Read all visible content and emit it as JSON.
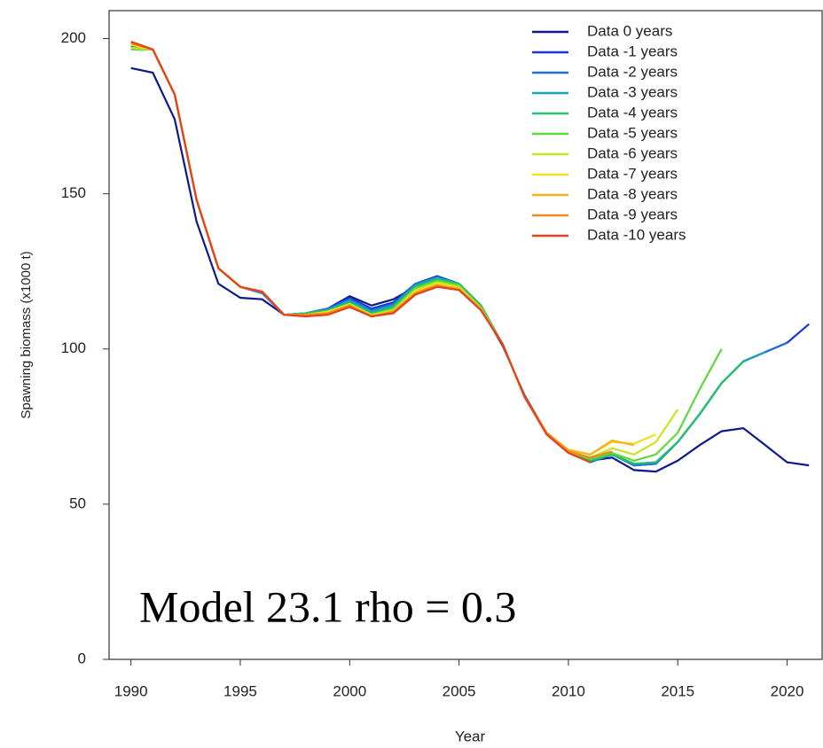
{
  "chart_data": {
    "type": "line",
    "xlabel": "Year",
    "ylabel": "Spawning biomass (x1000 t)",
    "annotation": "Model 23.1 rho = 0.3",
    "xlim": [
      1989,
      2021.6
    ],
    "ylim": [
      0,
      209
    ],
    "xticks": [
      1990,
      1995,
      2000,
      2005,
      2010,
      2015,
      2020
    ],
    "yticks": [
      0,
      50,
      100,
      150,
      200
    ],
    "legend": "top-right",
    "x": [
      1990,
      1991,
      1992,
      1993,
      1994,
      1995,
      1996,
      1997,
      1998,
      1999,
      2000,
      2001,
      2002,
      2003,
      2004,
      2005,
      2006,
      2007,
      2008,
      2009,
      2010,
      2011,
      2012,
      2013,
      2014,
      2015,
      2016,
      2017,
      2018,
      2019,
      2020,
      2021
    ],
    "series": [
      {
        "name": "Data 0 years",
        "color": "#0d1a8a",
        "values": [
          190.5,
          189,
          174,
          141,
          121,
          116.5,
          116,
          111,
          111,
          113,
          117,
          114,
          116,
          120,
          123,
          121,
          113,
          101,
          85,
          73,
          67,
          64,
          65,
          61,
          60.5,
          64,
          69,
          73.5,
          74.5,
          69,
          63.5,
          62.5
        ]
      },
      {
        "name": "Data -1 years",
        "color": "#1a33d6",
        "values": [
          197,
          196.5,
          182,
          148,
          126,
          120,
          118,
          111,
          111.5,
          113,
          116.5,
          113,
          115,
          121,
          123.5,
          121,
          114,
          101.5,
          84.5,
          73,
          67,
          63.5,
          66.5,
          62.5,
          63,
          70,
          79,
          89,
          96,
          99,
          102,
          108
        ]
      },
      {
        "name": "Data -2 years",
        "color": "#1f6fe0",
        "values": [
          197.5,
          196.5,
          182,
          148,
          126,
          120,
          118,
          111,
          111.5,
          113,
          116,
          112.5,
          114.5,
          121,
          123,
          121,
          114,
          101.5,
          84.5,
          73,
          67,
          63.5,
          66,
          62.5,
          63,
          70,
          79,
          89,
          96,
          99,
          102,
          null
        ]
      },
      {
        "name": "Data -3 years",
        "color": "#1aa3b8",
        "values": [
          197,
          196.5,
          182,
          148,
          126,
          120,
          118.5,
          111,
          111.5,
          112.5,
          115.5,
          112,
          114,
          120.5,
          123,
          121,
          114,
          101.5,
          84.5,
          73,
          67,
          64,
          66,
          63,
          63.5,
          70,
          79,
          89,
          96,
          99,
          null,
          null
        ]
      },
      {
        "name": "Data -4 years",
        "color": "#22c26a",
        "values": [
          196.5,
          196.5,
          182,
          148,
          126,
          120,
          118.5,
          111,
          111.5,
          112.5,
          115,
          111.5,
          113.5,
          120,
          122.5,
          121,
          114,
          101.5,
          84.5,
          73,
          67,
          64,
          66,
          63,
          63.5,
          70,
          79,
          89,
          96,
          null,
          null,
          null
        ]
      },
      {
        "name": "Data -5 years",
        "color": "#5fd83a",
        "values": [
          196.5,
          196.5,
          182,
          148,
          126,
          120,
          118.5,
          111,
          111,
          112,
          114.5,
          111,
          113,
          119.5,
          122,
          120.5,
          113.5,
          101.5,
          84.5,
          73,
          67,
          64.5,
          66.5,
          64,
          66,
          73,
          87,
          100,
          null,
          null,
          null,
          null
        ]
      },
      {
        "name": "Data -6 years",
        "color": "#c8e61c",
        "values": [
          197,
          196.5,
          182,
          148,
          126,
          120,
          118.5,
          111,
          111,
          112,
          114.5,
          111,
          112.5,
          119,
          121.5,
          120,
          113,
          101.5,
          84.5,
          73,
          67,
          65,
          68,
          66,
          70,
          80.5,
          null,
          null,
          null,
          null,
          null,
          null
        ]
      },
      {
        "name": "Data -7 years",
        "color": "#f0e020",
        "values": [
          198,
          196.5,
          182,
          148,
          126,
          120,
          118.5,
          111,
          111,
          112,
          114,
          110.5,
          112,
          118.5,
          121,
          119.5,
          113,
          101.5,
          84.5,
          73,
          67.5,
          66,
          70,
          69.5,
          72.5,
          null,
          null,
          null,
          null,
          null,
          null,
          null
        ]
      },
      {
        "name": "Data -8 years",
        "color": "#f5b21a",
        "values": [
          198.5,
          196.5,
          182,
          148,
          126,
          120,
          118.5,
          111,
          111,
          111.5,
          114,
          110.5,
          112,
          118,
          120.5,
          119.5,
          113,
          101.5,
          84.5,
          73,
          67.5,
          66,
          70.5,
          69,
          null,
          null,
          null,
          null,
          null,
          null,
          null,
          null
        ]
      },
      {
        "name": "Data -9 years",
        "color": "#f08a1e",
        "values": [
          198.5,
          196.5,
          182,
          148,
          126,
          120,
          118.5,
          111,
          111,
          111.5,
          114,
          110.5,
          112,
          118,
          120.5,
          119,
          112.5,
          101.5,
          84.5,
          73,
          67,
          65,
          67,
          null,
          null,
          null,
          null,
          null,
          null,
          null,
          null,
          null
        ]
      },
      {
        "name": "Data -10 years",
        "color": "#e8401a",
        "values": [
          199,
          196.5,
          182,
          148,
          126,
          120,
          118.5,
          111,
          110.5,
          111,
          113.5,
          110.5,
          111.5,
          117.5,
          120,
          119,
          112.5,
          101.5,
          84.5,
          72.5,
          66.5,
          63.5,
          null,
          null,
          null,
          null,
          null,
          null,
          null,
          null,
          null,
          null
        ]
      }
    ]
  }
}
